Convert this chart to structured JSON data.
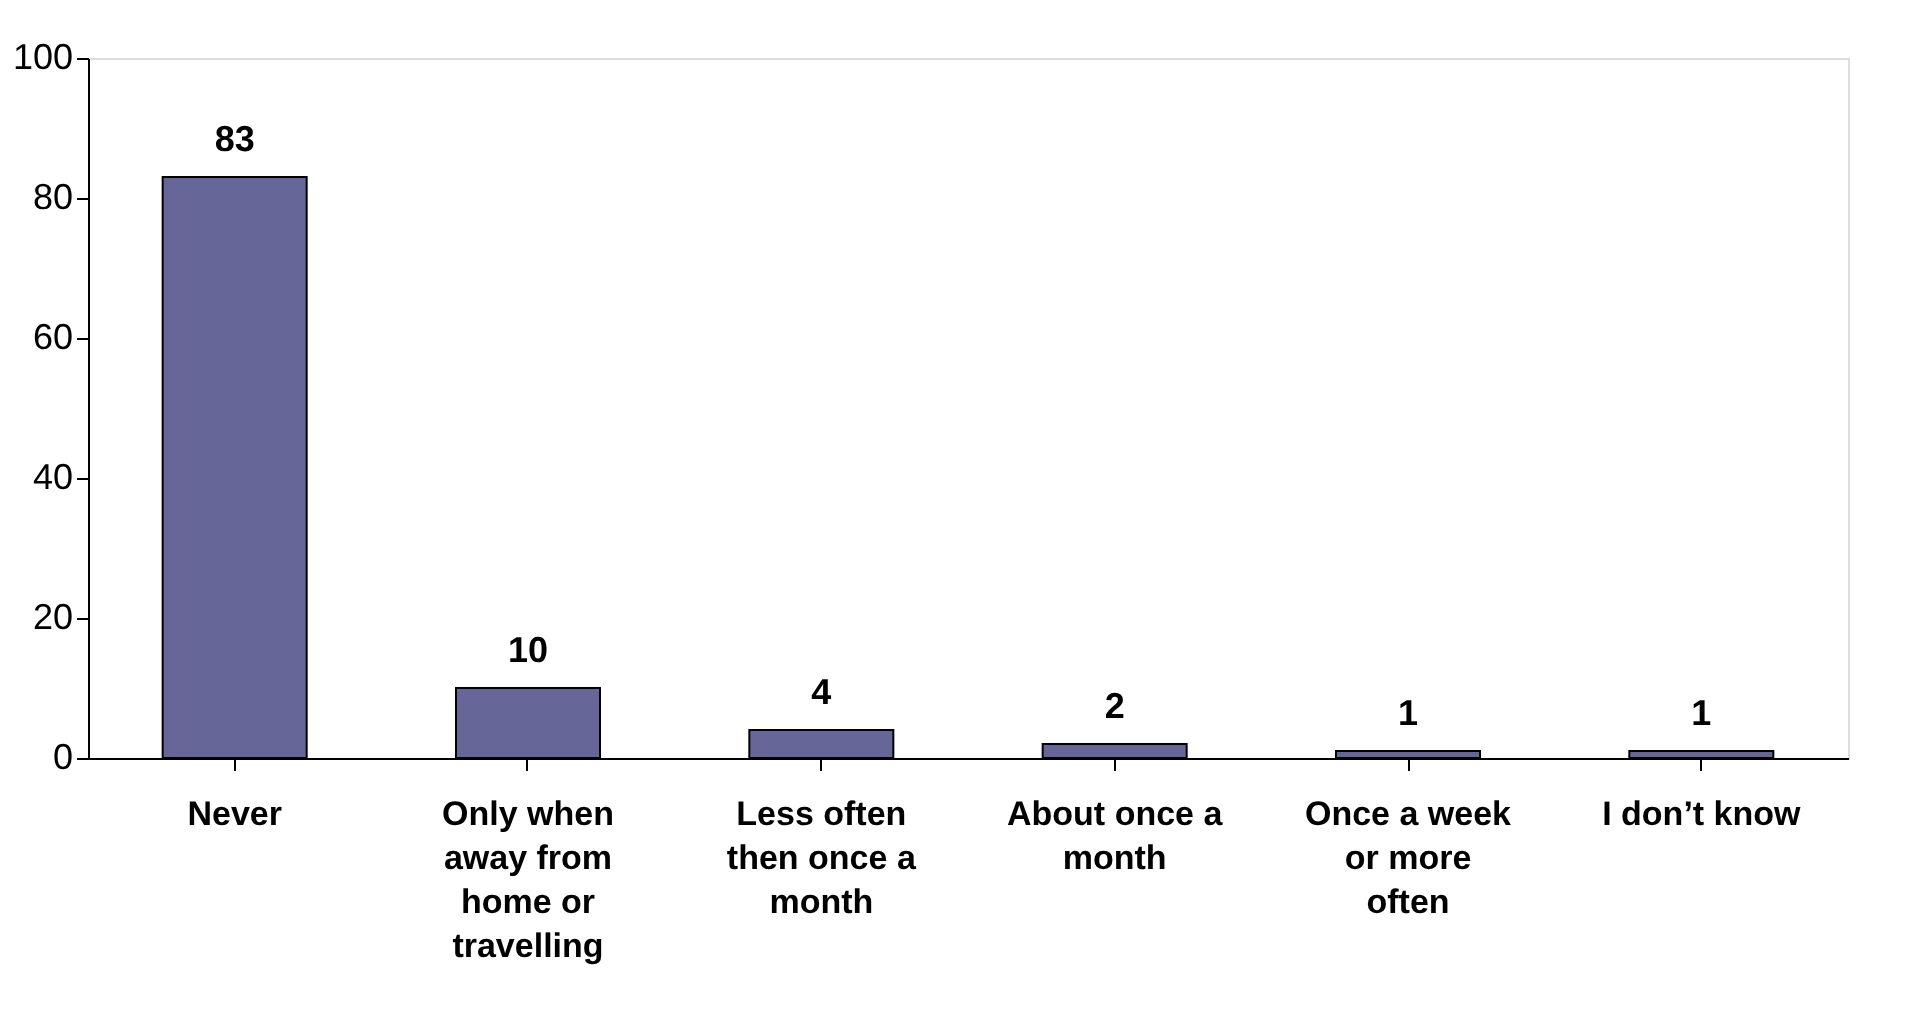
{
  "chart_data": {
    "type": "bar",
    "categories": [
      "Never",
      "Only when away from home or travelling",
      "Less often then once a month",
      "About once a month",
      "Once a week or more often",
      "I don’t know"
    ],
    "values": [
      83,
      10,
      4,
      2,
      1,
      1
    ],
    "color": "#666699",
    "ylim": [
      0,
      100
    ],
    "yticks": [
      0,
      20,
      40,
      60,
      80,
      100
    ],
    "grid": false,
    "data_labels": true
  }
}
